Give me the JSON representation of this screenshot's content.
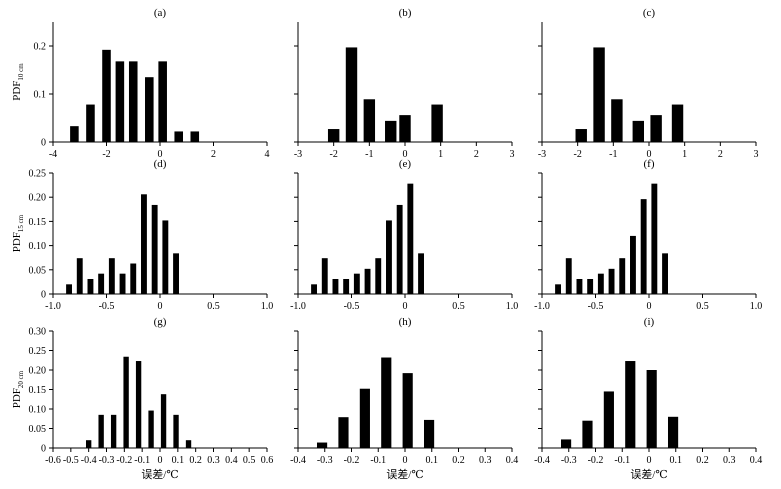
{
  "chart_data": [
    {
      "panel": "(a)",
      "type": "bar",
      "ylabel": "PDF",
      "ylabel_sub": "10 cm",
      "xlim": [
        -4,
        4
      ],
      "ylim": [
        0,
        0.25
      ],
      "xticks": [
        -4,
        -2,
        0,
        2,
        4
      ],
      "xtick_labels": [
        "-4",
        "-2",
        "0",
        "2",
        "4"
      ],
      "yticks": [
        0,
        0.1,
        0.2
      ],
      "ytick_labels": [
        "0",
        "0.1",
        "0.2"
      ],
      "bar_width": 0.32,
      "x": [
        -3.2,
        -2.6,
        -2.0,
        -1.5,
        -1.0,
        -0.4,
        0.1,
        0.7,
        1.3
      ],
      "values": [
        0.033,
        0.078,
        0.192,
        0.168,
        0.168,
        0.135,
        0.168,
        0.022,
        0.022
      ]
    },
    {
      "panel": "(b)",
      "type": "bar",
      "xlim": [
        -3,
        3
      ],
      "ylim": [
        0,
        0.25
      ],
      "xticks": [
        -3,
        -2,
        -1,
        0,
        1,
        2,
        3
      ],
      "xtick_labels": [
        "-3",
        "-2",
        "-1",
        "0",
        "1",
        "2",
        "3"
      ],
      "yticks": [
        0,
        0.1,
        0.2
      ],
      "ytick_labels": [
        "",
        "",
        ""
      ],
      "bar_width": 0.32,
      "x": [
        -2.0,
        -1.5,
        -1.0,
        -0.4,
        0.0,
        0.9
      ],
      "values": [
        0.027,
        0.197,
        0.089,
        0.044,
        0.056,
        0.078
      ]
    },
    {
      "panel": "(c)",
      "type": "bar",
      "xlim": [
        -3,
        3
      ],
      "ylim": [
        0,
        0.25
      ],
      "xticks": [
        -3,
        -2,
        -1,
        0,
        1,
        2,
        3
      ],
      "xtick_labels": [
        "-3",
        "-2",
        "-1",
        "0",
        "1",
        "2",
        "3"
      ],
      "yticks": [
        0,
        0.1,
        0.2
      ],
      "ytick_labels": [
        "",
        "",
        ""
      ],
      "bar_width": 0.32,
      "x": [
        -1.9,
        -1.4,
        -0.9,
        -0.3,
        0.2,
        0.8
      ],
      "values": [
        0.027,
        0.197,
        0.089,
        0.044,
        0.056,
        0.078
      ]
    },
    {
      "panel": "(d)",
      "type": "bar",
      "ylabel": "PDF",
      "ylabel_sub": "15 cm",
      "xlim": [
        -1.0,
        1.0
      ],
      "ylim": [
        0,
        0.25
      ],
      "xticks": [
        -1.0,
        -0.5,
        0,
        0.5,
        1.0
      ],
      "xtick_labels": [
        "-1.0",
        "-0.5",
        "0",
        "0.5",
        "1.0"
      ],
      "yticks": [
        0,
        0.05,
        0.1,
        0.15,
        0.2,
        0.25
      ],
      "ytick_labels": [
        "0",
        "0.05",
        "0.10",
        "0.15",
        "0.20",
        "0.25"
      ],
      "bar_width": 0.055,
      "x": [
        -0.85,
        -0.75,
        -0.65,
        -0.55,
        -0.45,
        -0.35,
        -0.25,
        -0.15,
        -0.05,
        0.05,
        0.15,
        0.25
      ],
      "values": [
        0.02,
        0.074,
        0.031,
        0.042,
        0.074,
        0.042,
        0.063,
        0.206,
        0.184,
        0.152,
        0.084,
        0.0
      ]
    },
    {
      "panel": "(e)",
      "type": "bar",
      "xlim": [
        -1.0,
        1.0
      ],
      "ylim": [
        0,
        0.25
      ],
      "xticks": [
        -1.0,
        -0.5,
        0,
        0.5,
        1.0
      ],
      "xtick_labels": [
        "-1.0",
        "-0.5",
        "0",
        "0.5",
        "1.0"
      ],
      "yticks": [
        0,
        0.05,
        0.1,
        0.15,
        0.2,
        0.25
      ],
      "ytick_labels": [
        "",
        "",
        "",
        "",
        "",
        ""
      ],
      "bar_width": 0.055,
      "x": [
        -0.85,
        -0.75,
        -0.65,
        -0.55,
        -0.45,
        -0.35,
        -0.25,
        -0.15,
        -0.05,
        0.05,
        0.15
      ],
      "values": [
        0.02,
        0.074,
        0.031,
        0.031,
        0.042,
        0.052,
        0.074,
        0.152,
        0.184,
        0.228,
        0.084
      ]
    },
    {
      "panel": "(f)",
      "type": "bar",
      "xlim": [
        -1.0,
        1.0
      ],
      "ylim": [
        0,
        0.25
      ],
      "xticks": [
        -1.0,
        -0.5,
        0,
        0.5,
        1.0
      ],
      "xtick_labels": [
        "-1.0",
        "-0.5",
        "0",
        "0.5",
        "1.0"
      ],
      "yticks": [
        0,
        0.05,
        0.1,
        0.15,
        0.2,
        0.25
      ],
      "ytick_labels": [
        "",
        "",
        "",
        "",
        "",
        ""
      ],
      "bar_width": 0.055,
      "x": [
        -0.85,
        -0.75,
        -0.65,
        -0.55,
        -0.45,
        -0.35,
        -0.25,
        -0.15,
        -0.05,
        0.05,
        0.15,
        0.25
      ],
      "values": [
        0.02,
        0.074,
        0.031,
        0.031,
        0.042,
        0.052,
        0.074,
        0.12,
        0.196,
        0.228,
        0.084,
        0.0
      ]
    },
    {
      "panel": "(g)",
      "type": "bar",
      "ylabel": "PDF",
      "ylabel_sub": "20 cm",
      "xlabel": "误差/℃",
      "xlim": [
        -0.6,
        0.6
      ],
      "ylim": [
        0,
        0.3
      ],
      "xticks": [
        -0.6,
        -0.5,
        -0.4,
        -0.3,
        -0.2,
        -0.1,
        0,
        0.1,
        0.2,
        0.3,
        0.4,
        0.5,
        0.6
      ],
      "xtick_labels": [
        "-0.6",
        "-0.5",
        "-0.4",
        "-0.3",
        "-0.2",
        "-0.1",
        "0",
        "0.1",
        "0.2",
        "0.3",
        "0.4",
        "0.5",
        "0.6"
      ],
      "yticks": [
        0,
        0.05,
        0.1,
        0.15,
        0.2,
        0.25,
        0.3
      ],
      "ytick_labels": [
        "0",
        "0.05",
        "0.10",
        "0.15",
        "0.20",
        "0.25",
        "0.30"
      ],
      "bar_width": 0.03,
      "x": [
        -0.4,
        -0.33,
        -0.26,
        -0.19,
        -0.12,
        -0.05,
        0.02,
        0.09,
        0.16,
        0.23
      ],
      "values": [
        0.02,
        0.085,
        0.085,
        0.234,
        0.223,
        0.096,
        0.138,
        0.085,
        0.02,
        0.0
      ]
    },
    {
      "panel": "(h)",
      "type": "bar",
      "xlabel": "误差/℃",
      "xlim": [
        -0.4,
        0.4
      ],
      "ylim": [
        0,
        0.3
      ],
      "xticks": [
        -0.4,
        -0.3,
        -0.2,
        -0.1,
        0,
        0.1,
        0.2,
        0.3,
        0.4
      ],
      "xtick_labels": [
        "-0.4",
        "-0.3",
        "-0.2",
        "-0.1",
        "0",
        "0.1",
        "0.2",
        "0.3",
        "0.4"
      ],
      "yticks": [
        0,
        0.05,
        0.1,
        0.15,
        0.2,
        0.25,
        0.3
      ],
      "ytick_labels": [
        "",
        "",
        "",
        "",
        "",
        "",
        ""
      ],
      "bar_width": 0.038,
      "x": [
        -0.31,
        -0.23,
        -0.15,
        -0.07,
        0.01,
        0.09
      ],
      "values": [
        0.014,
        0.079,
        0.152,
        0.232,
        0.192,
        0.072
      ]
    },
    {
      "panel": "(i)",
      "type": "bar",
      "xlabel": "误差/℃",
      "xlim": [
        -0.4,
        0.4
      ],
      "ylim": [
        0,
        0.3
      ],
      "xticks": [
        -0.4,
        -0.3,
        -0.2,
        -0.1,
        0,
        0.1,
        0.2,
        0.3,
        0.4
      ],
      "xtick_labels": [
        "-0.4",
        "-0.3",
        "-0.2",
        "-0.1",
        "0",
        "0.1",
        "0.2",
        "0.3",
        "0.4"
      ],
      "yticks": [
        0,
        0.05,
        0.1,
        0.15,
        0.2,
        0.25,
        0.3
      ],
      "ytick_labels": [
        "",
        "",
        "",
        "",
        "",
        "",
        ""
      ],
      "bar_width": 0.038,
      "x": [
        -0.31,
        -0.23,
        -0.15,
        -0.07,
        0.01,
        0.09
      ],
      "values": [
        0.022,
        0.07,
        0.145,
        0.223,
        0.2,
        0.08
      ]
    }
  ]
}
